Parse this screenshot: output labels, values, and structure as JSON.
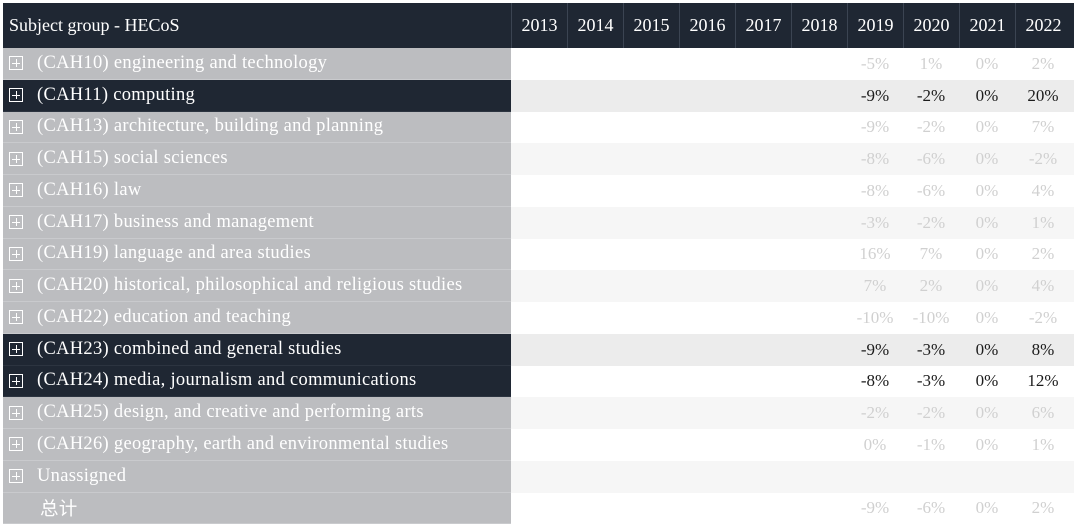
{
  "header": {
    "title": "Subject group - HECoS",
    "years": [
      "2013",
      "2014",
      "2015",
      "2016",
      "2017",
      "2018",
      "2019",
      "2020",
      "2021",
      "2022"
    ]
  },
  "rows": [
    {
      "label": "(CAH10) engineering and technology",
      "values": [
        "",
        "",
        "",
        "",
        "",
        "",
        "-5%",
        "1%",
        "0%",
        "2%"
      ],
      "highlight": false
    },
    {
      "label": "(CAH11) computing",
      "values": [
        "",
        "",
        "",
        "",
        "",
        "",
        "-9%",
        "-2%",
        "0%",
        "20%"
      ],
      "highlight": true
    },
    {
      "label": "(CAH13) architecture, building and planning",
      "values": [
        "",
        "",
        "",
        "",
        "",
        "",
        "-9%",
        "-2%",
        "0%",
        "7%"
      ],
      "highlight": false
    },
    {
      "label": "(CAH15) social sciences",
      "values": [
        "",
        "",
        "",
        "",
        "",
        "",
        "-8%",
        "-6%",
        "0%",
        "-2%"
      ],
      "highlight": false
    },
    {
      "label": "(CAH16) law",
      "values": [
        "",
        "",
        "",
        "",
        "",
        "",
        "-8%",
        "-6%",
        "0%",
        "4%"
      ],
      "highlight": false
    },
    {
      "label": "(CAH17) business and management",
      "values": [
        "",
        "",
        "",
        "",
        "",
        "",
        "-3%",
        "-2%",
        "0%",
        "1%"
      ],
      "highlight": false
    },
    {
      "label": "(CAH19) language and area studies",
      "values": [
        "",
        "",
        "",
        "",
        "",
        "",
        "16%",
        "7%",
        "0%",
        "2%"
      ],
      "highlight": false
    },
    {
      "label": "(CAH20) historical, philosophical and religious studies",
      "values": [
        "",
        "",
        "",
        "",
        "",
        "",
        "7%",
        "2%",
        "0%",
        "4%"
      ],
      "highlight": false
    },
    {
      "label": "(CAH22) education and teaching",
      "values": [
        "",
        "",
        "",
        "",
        "",
        "",
        "-10%",
        "-10%",
        "0%",
        "-2%"
      ],
      "highlight": false
    },
    {
      "label": "(CAH23) combined and general studies",
      "values": [
        "",
        "",
        "",
        "",
        "",
        "",
        "-9%",
        "-3%",
        "0%",
        "8%"
      ],
      "highlight": true
    },
    {
      "label": "(CAH24) media, journalism and communications",
      "values": [
        "",
        "",
        "",
        "",
        "",
        "",
        "-8%",
        "-3%",
        "0%",
        "12%"
      ],
      "highlight": true
    },
    {
      "label": "(CAH25) design, and creative and performing arts",
      "values": [
        "",
        "",
        "",
        "",
        "",
        "",
        "-2%",
        "-2%",
        "0%",
        "6%"
      ],
      "highlight": false
    },
    {
      "label": "(CAH26) geography, earth and environmental studies",
      "values": [
        "",
        "",
        "",
        "",
        "",
        "",
        "0%",
        "-1%",
        "0%",
        "1%"
      ],
      "highlight": false
    },
    {
      "label": "Unassigned",
      "values": [
        "",
        "",
        "",
        "",
        "",
        "",
        "",
        "",
        "",
        ""
      ],
      "highlight": false
    }
  ],
  "total": {
    "label": "总计",
    "values": [
      "",
      "",
      "",
      "",
      "",
      "",
      "-9%",
      "-6%",
      "0%",
      "2%"
    ]
  },
  "colors": {
    "header_bg": "#1f2733",
    "highlight_bg": "#1f2733",
    "label_bg": "#bcbdc0",
    "muted_text": "#d0d0d0"
  },
  "icons": {
    "expand": "plus-box-icon"
  }
}
